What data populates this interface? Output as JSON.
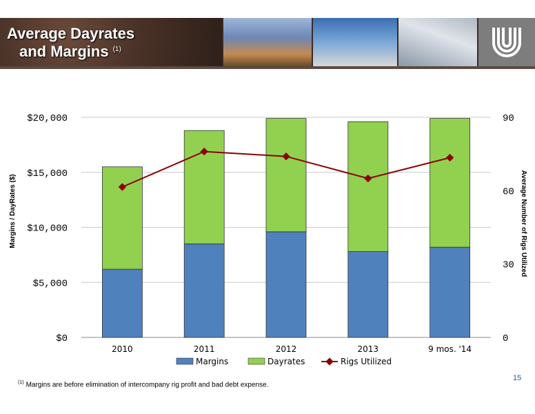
{
  "slide": {
    "title_line1": "Average Dayrates",
    "title_line2": "and Margins",
    "title_footnote_mark": "(1)",
    "footnote_mark": "(1)",
    "footnote_text": "Margins are before elimination of intercompany rig profit and bad debt expense.",
    "page_number": "15"
  },
  "colors": {
    "margins": "#4f81bd",
    "dayrates": "#92d050",
    "rigs": "#8b0000",
    "grid": "#c8c8c8"
  },
  "chart_data": {
    "type": "bar",
    "stacked": true,
    "categories": [
      "2010",
      "2011",
      "2012",
      "2013",
      "9 mos. '14"
    ],
    "series": [
      {
        "name": "Margins",
        "axis": "left",
        "values": [
          6200,
          8500,
          9600,
          7800,
          8200
        ]
      },
      {
        "name": "Dayrates",
        "axis": "left",
        "values": [
          9300,
          10300,
          10300,
          11800,
          11700
        ]
      },
      {
        "name": "Rigs Utilized",
        "axis": "right",
        "type": "line",
        "values": [
          61.5,
          76,
          74,
          65,
          73.5
        ]
      }
    ],
    "ylabel": "Margins / DayRates ($)",
    "y2label": "Average Number of Rigs Utilized",
    "ylim": [
      0,
      20000
    ],
    "y2lim": [
      0,
      90
    ],
    "yticks": [
      "$0",
      "$5,000",
      "$10,000",
      "$15,000",
      "$20,000"
    ],
    "y2ticks": [
      "0",
      "30",
      "60",
      "90"
    ],
    "grid": true,
    "legend": "bottom"
  }
}
